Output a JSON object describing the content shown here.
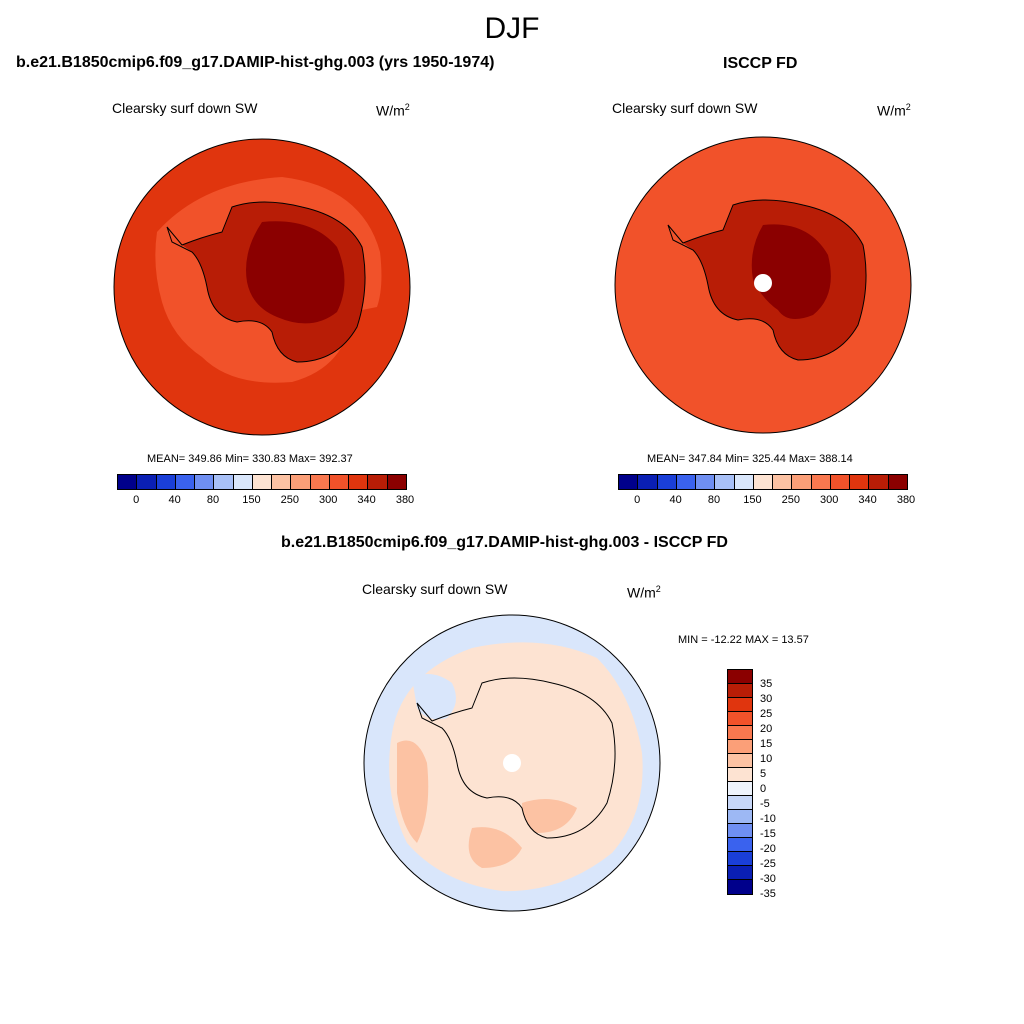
{
  "main_title": "DJF",
  "panels": {
    "model": {
      "title": "b.e21.B1850cmip6.f09_g17.DAMIP-hist-ghg.003 (yrs 1950-1974)",
      "variable": "Clearsky surf down SW",
      "units_base": "W/m",
      "units_exp": "2",
      "stats": "MEAN= 349.86  Min= 330.83  Max= 392.37"
    },
    "obs": {
      "title": "ISCCP FD",
      "variable": "Clearsky surf down SW",
      "units_base": "W/m",
      "units_exp": "2",
      "stats": "MEAN= 347.84  Min= 325.44  Max= 388.14"
    },
    "diff": {
      "title": "b.e21.B1850cmip6.f09_g17.DAMIP-hist-ghg.003 - ISCCP FD",
      "variable": "Clearsky surf down SW",
      "units_base": "W/m",
      "units_exp": "2",
      "stats": "MIN = -12.22 MAX =  13.57"
    }
  },
  "colorbar_abs": {
    "colors": [
      "#00008b",
      "#0a1fb4",
      "#1a3fd8",
      "#3a62ee",
      "#6f8ff2",
      "#a8c0f7",
      "#d9e6fb",
      "#fde3d2",
      "#fcc2a3",
      "#fb9f78",
      "#f9784f",
      "#f1522a",
      "#e0350e",
      "#b81d06",
      "#8b0000"
    ],
    "tick_labels": [
      "0",
      "40",
      "80",
      "150",
      "250",
      "300",
      "340",
      "380"
    ]
  },
  "colorbar_diff": {
    "colors": [
      "#8b0000",
      "#b81d06",
      "#e0350e",
      "#f1522a",
      "#f9784f",
      "#fb9f78",
      "#fcc2a3",
      "#fde3d2",
      "#eef3fc",
      "#c7d7f8",
      "#9db8f4",
      "#6f8ff2",
      "#3a62ee",
      "#1a3fd8",
      "#0a1fb4",
      "#00008b"
    ],
    "tick_labels": [
      "35",
      "30",
      "25",
      "20",
      "15",
      "10",
      "5",
      "0",
      "-5",
      "-10",
      "-15",
      "-20",
      "-25",
      "-30",
      "-35"
    ]
  },
  "map_colors": {
    "ocean_model": "#e0350e",
    "ring_model": "#f1522a",
    "coast_model": "#b81d06",
    "interior_model": "#8b0000",
    "ocean_obs": "#f1522a",
    "ring_obs": "#e0350e",
    "coast_obs": "#b81d06",
    "interior_obs": "#8b0000",
    "diff_base": "#fde3d2",
    "diff_blue": "#d9e6fb",
    "diff_pos": "#fcc2a3",
    "missing": "#ffffff"
  }
}
